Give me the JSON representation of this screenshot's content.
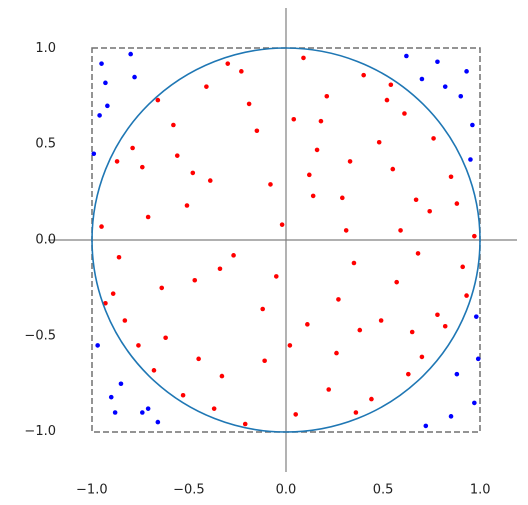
{
  "chart_data": {
    "type": "scatter",
    "xlim": [
      -1.2,
      1.2
    ],
    "ylim": [
      -1.2,
      1.2
    ],
    "xticks": [
      {
        "value": -1,
        "label": "−1.0"
      },
      {
        "value": -0.5,
        "label": "−0.5"
      },
      {
        "value": 0,
        "label": "0.0"
      },
      0.5,
      {
        "value": 1,
        "label": "1.0"
      }
    ],
    "yticks": [
      {
        "value": -1,
        "label": "−1.0"
      },
      {
        "value": -0.5,
        "label": "−0.5"
      },
      {
        "value": 0,
        "label": "0.0"
      },
      0.5,
      {
        "value": 1,
        "label": "1.0"
      }
    ],
    "series": [
      {
        "color": "#ff0000",
        "x": [
          0.12,
          -0.45,
          0.67,
          -0.23,
          0.38,
          -0.71,
          0.05,
          0.52,
          -0.89,
          0.31,
          -0.15,
          0.78,
          -0.56,
          0.22,
          -0.34,
          0.61,
          -0.08,
          0.44,
          -0.62,
          0.85,
          -0.27,
          0.09,
          -0.79,
          0.57,
          -0.41,
          0.33,
          0.7,
          -0.12,
          -0.51,
          0.18,
          0.91,
          -0.68,
          0.27,
          -0.95,
          0.48,
          0.02,
          -0.37,
          0.74,
          -0.19,
          0.63,
          -0.83,
          0.14,
          0.4,
          -0.58,
          0.82,
          -0.05,
          -0.74,
          0.55,
          -0.3,
          0.26,
          -0.47,
          0.35,
          -0.87,
          0.59,
          -0.11,
          0.93,
          -0.64,
          0.16,
          -0.39,
          0.76,
          -0.21,
          0.49,
          -0.76,
          0.04,
          0.29,
          -0.53,
          0.68,
          -0.93,
          0.11,
          0.88,
          -0.33,
          0.54,
          -0.02,
          -0.66,
          0.36,
          0.97,
          -0.48,
          0.21,
          -0.86,
          0.65
        ],
        "values": [
          0.34,
          -0.62,
          0.21,
          0.88,
          -0.47,
          0.12,
          -0.91,
          0.73,
          -0.28,
          0.05,
          0.57,
          -0.39,
          0.44,
          -0.78,
          -0.15,
          0.66,
          0.29,
          -0.83,
          -0.51,
          0.33,
          -0.08,
          0.95,
          0.48,
          -0.22,
          0.8,
          0.41,
          -0.61,
          -0.36,
          0.18,
          0.62,
          -0.14,
          -0.68,
          -0.31,
          0.07,
          0.51,
          -0.55,
          -0.88,
          0.15,
          0.71,
          -0.7,
          -0.42,
          0.23,
          0.86,
          0.6,
          -0.45,
          -0.19,
          0.38,
          0.37,
          0.92,
          -0.59,
          -0.21,
          -0.12,
          0.41,
          0.05,
          -0.63,
          -0.29,
          -0.25,
          0.47,
          0.31,
          0.53,
          -0.96,
          -0.42,
          -0.55,
          0.63,
          0.22,
          -0.81,
          -0.07,
          -0.33,
          -0.44,
          0.19,
          -0.71,
          0.81,
          0.08,
          0.73,
          -0.9,
          0.02,
          0.35,
          0.75,
          -0.09,
          -0.48
        ]
      },
      {
        "color": "#0000ff",
        "x": [
          -0.95,
          0.93,
          -0.88,
          0.97,
          -0.92,
          0.85,
          0.96,
          -0.97,
          0.78,
          -0.8,
          0.9,
          -0.99,
          0.72,
          -0.74,
          0.98,
          -0.85,
          0.88,
          -0.93,
          0.62,
          -0.66,
          0.95,
          -0.9,
          0.82,
          -0.78,
          0.99,
          -0.96,
          0.7,
          -0.71
        ],
        "values": [
          0.92,
          0.88,
          -0.9,
          -0.85,
          0.7,
          -0.92,
          0.6,
          -0.55,
          0.93,
          0.97,
          0.75,
          0.45,
          -0.97,
          -0.9,
          -0.4,
          -0.75,
          -0.7,
          0.82,
          0.96,
          -0.95,
          0.42,
          -0.82,
          0.8,
          0.85,
          -0.62,
          0.65,
          0.84,
          -0.88
        ]
      }
    ]
  }
}
